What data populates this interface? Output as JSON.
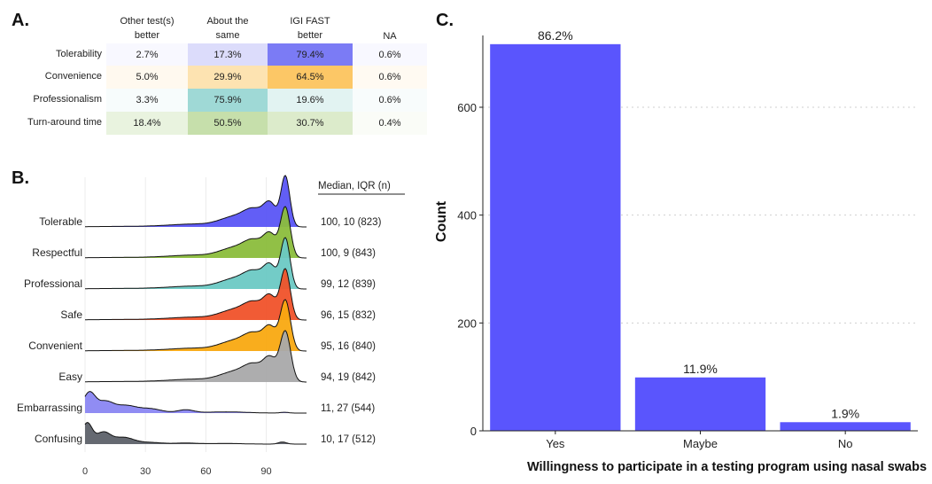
{
  "panels": {
    "A": {
      "letter": "A.",
      "columns": [
        "Other test(s)\nbetter",
        "About the\nsame",
        "IGI FAST\nbetter",
        "NA"
      ],
      "rows": [
        {
          "label": "Tolerability",
          "values": [
            "2.7%",
            "17.3%",
            "79.4%",
            "0.6%"
          ],
          "colors": [
            "#f8f8ff",
            "#dcdcfb",
            "#7b7bf5",
            "#f8f8ff"
          ]
        },
        {
          "label": "Convenience",
          "values": [
            "5.0%",
            "29.9%",
            "64.5%",
            "0.6%"
          ],
          "colors": [
            "#fff9ef",
            "#fde3b1",
            "#fcc766",
            "#fffaf2"
          ]
        },
        {
          "label": "Professionalism",
          "values": [
            "3.3%",
            "75.9%",
            "19.6%",
            "0.6%"
          ],
          "colors": [
            "#f7fcfc",
            "#9fd9d6",
            "#e2f3f2",
            "#f8fcfc"
          ]
        },
        {
          "label": "Turn-around time",
          "values": [
            "18.4%",
            "50.5%",
            "30.7%",
            "0.4%"
          ],
          "colors": [
            "#e9f3df",
            "#c6dfab",
            "#dcebcb",
            "#fafcf7"
          ]
        }
      ]
    },
    "B": {
      "letter": "B.",
      "stat_header": "Median, IQR (n)",
      "x_ticks": [
        "0",
        "30",
        "60",
        "90"
      ]
    },
    "C": {
      "letter": "C."
    }
  },
  "chart_data": [
    {
      "type": "table",
      "title": "",
      "columns": [
        "Other test(s) better",
        "About the same",
        "IGI FAST better",
        "NA"
      ],
      "rows": [
        "Tolerability",
        "Convenience",
        "Professionalism",
        "Turn-around time"
      ],
      "values": [
        [
          2.7,
          17.3,
          79.4,
          0.6
        ],
        [
          5.0,
          29.9,
          64.5,
          0.6
        ],
        [
          3.3,
          75.9,
          19.6,
          0.6
        ],
        [
          18.4,
          50.5,
          30.7,
          0.4
        ]
      ]
    },
    {
      "type": "area",
      "subtype": "ridgeline",
      "xlim": [
        0,
        110
      ],
      "x_ticks": [
        0,
        30,
        60,
        90
      ],
      "series": [
        {
          "name": "Tolerable",
          "stat": "100, 10 (823)",
          "color": "#5a55f5"
        },
        {
          "name": "Respectful",
          "stat": "100, 9 (843)",
          "color": "#8bbd3c"
        },
        {
          "name": "Professional",
          "stat": "99, 12 (839)",
          "color": "#6cc9c4"
        },
        {
          "name": "Safe",
          "stat": "96, 15 (832)",
          "color": "#f0522a"
        },
        {
          "name": "Convenient",
          "stat": "95, 16 (840)",
          "color": "#f9a911"
        },
        {
          "name": "Easy",
          "stat": "94, 19 (842)",
          "color": "#a9a9aa"
        },
        {
          "name": "Embarrassing",
          "stat": "11, 27 (544)",
          "color": "#8a86f2"
        },
        {
          "name": "Confusing",
          "stat": "10, 17 (512)",
          "color": "#5d6169"
        }
      ]
    },
    {
      "type": "bar",
      "categories": [
        "Yes",
        "Maybe",
        "No"
      ],
      "values": [
        717,
        99,
        16
      ],
      "data_labels": [
        "86.2%",
        "11.9%",
        "1.9%"
      ],
      "xlabel": "Willingness to participate in a testing program using nasal swabs",
      "ylabel": "Count",
      "ylim": [
        0,
        720
      ],
      "y_ticks": [
        0,
        200,
        400,
        600
      ],
      "grid": "horizontal-dotted",
      "bar_color": "#5a55fd"
    }
  ]
}
